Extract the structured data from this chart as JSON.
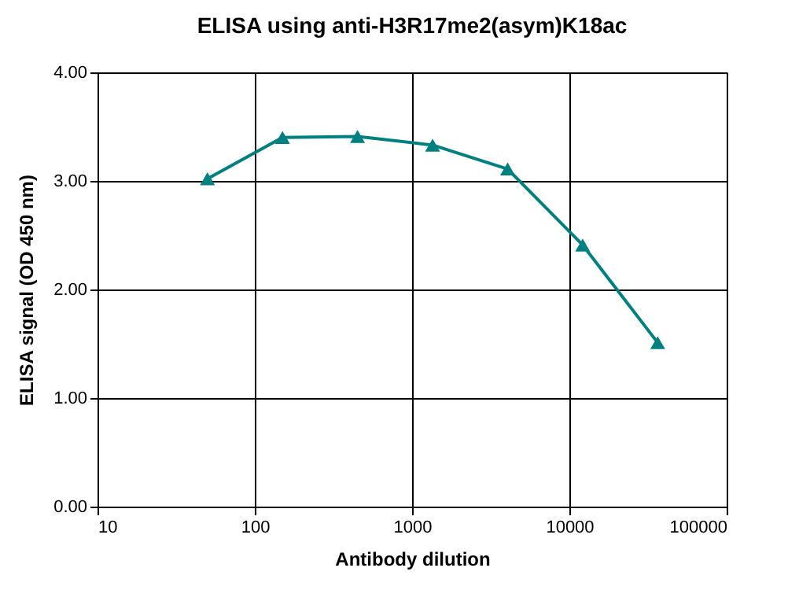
{
  "chart_data": {
    "type": "line",
    "title": "ELISA using anti-H3R17me2(asym)K18ac",
    "xlabel": "Antibody dilution",
    "ylabel": "ELISA signal (OD 450 nm)",
    "x": [
      50,
      150,
      450,
      1350,
      4050,
      12150,
      36450
    ],
    "series": [
      {
        "color": "#008080",
        "values": [
          3.02,
          3.4,
          3.41,
          3.33,
          3.11,
          2.41,
          1.51
        ]
      }
    ],
    "log": "x",
    "xlim": [
      10,
      100000
    ],
    "xticks": [
      10,
      100,
      1000,
      10000,
      100000
    ],
    "ylim": [
      0,
      4
    ],
    "yticks": [
      {
        "value": 0,
        "label": "0.00"
      },
      {
        "value": 1,
        "label": "1.00"
      },
      {
        "value": 2,
        "label": "2.00"
      },
      {
        "value": 3,
        "label": "3.00"
      },
      {
        "value": 4,
        "label": "4.00"
      }
    ],
    "grid": true,
    "marker": "triangle",
    "line_style": "solid",
    "legend": false
  }
}
